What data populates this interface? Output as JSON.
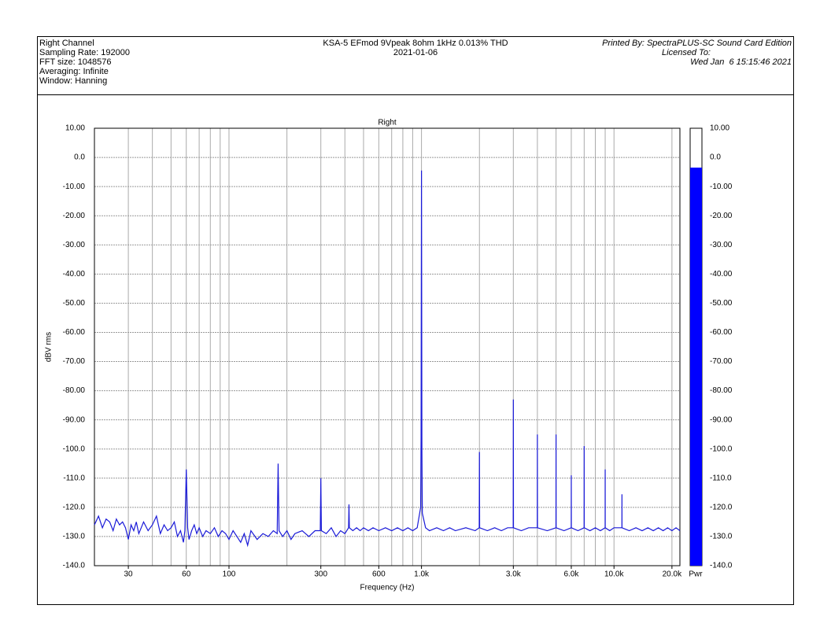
{
  "header": {
    "left": [
      "Right Channel",
      "Sampling Rate: 192000",
      "FFT size: 1048576",
      "Averaging: Infinite",
      "Window: Hanning"
    ],
    "center": [
      "KSA-5 EFmod 9Vpeak 8ohm 1kHz 0.013% THD",
      "2021-01-06"
    ],
    "right": [
      "Printed By: SpectraPLUS-SC Sound Card Edition",
      "Licensed To:",
      "Wed Jan  6 15:15:46 2021"
    ]
  },
  "chart_data": {
    "type": "line",
    "title": "Right",
    "x_label": "Frequency (Hz)",
    "y_label": "dBV rms",
    "log_x": true,
    "grid": true,
    "xlim": [
      20,
      22000
    ],
    "ylim": [
      -140,
      10
    ],
    "xticks": [
      30,
      60,
      100,
      300,
      600,
      {
        "value": 1000,
        "label": "1.0k"
      },
      {
        "value": 3000,
        "label": "3.0k"
      },
      {
        "value": 6000,
        "label": "6.0k"
      },
      {
        "value": 10000,
        "label": "10.0k"
      },
      {
        "value": 20000,
        "label": "20.0k"
      }
    ],
    "yticks": [
      {
        "value": 10,
        "label": "10.00"
      },
      {
        "value": 0,
        "label": "0.0"
      },
      {
        "value": -10,
        "label": "-10.00"
      },
      {
        "value": -20,
        "label": "-20.00"
      },
      {
        "value": -30,
        "label": "-30.00"
      },
      {
        "value": -40,
        "label": "-40.00"
      },
      {
        "value": -50,
        "label": "-50.00"
      },
      {
        "value": -60,
        "label": "-60.00"
      },
      {
        "value": -70,
        "label": "-70.00"
      },
      {
        "value": -80,
        "label": "-80.00"
      },
      {
        "value": -90,
        "label": "-90.00"
      },
      {
        "value": -100,
        "label": "-100.0"
      },
      {
        "value": -110,
        "label": "-110.0"
      },
      {
        "value": -120,
        "label": "-120.0"
      },
      {
        "value": -130,
        "label": "-130.0"
      },
      {
        "value": -140,
        "label": "-140.0"
      }
    ],
    "x": [
      20,
      21,
      22,
      23,
      24,
      25,
      26,
      27,
      28,
      29,
      30,
      31,
      32,
      33,
      34,
      35,
      36,
      38,
      40,
      42,
      44,
      46,
      48,
      50,
      52,
      54,
      56,
      58,
      59,
      60,
      61,
      62,
      64,
      66,
      68,
      70,
      73,
      76,
      80,
      84,
      88,
      92,
      96,
      100,
      105,
      110,
      115,
      120,
      125,
      130,
      140,
      150,
      160,
      170,
      178,
      180,
      182,
      190,
      200,
      210,
      220,
      240,
      260,
      280,
      298,
      300,
      302,
      320,
      340,
      360,
      380,
      400,
      418,
      420,
      422,
      440,
      460,
      480,
      500,
      530,
      560,
      600,
      650,
      700,
      750,
      800,
      850,
      900,
      950,
      990,
      995,
      1000,
      1005,
      1010,
      1050,
      1100,
      1200,
      1300,
      1400,
      1500,
      1700,
      1900,
      1995,
      2000,
      2005,
      2200,
      2400,
      2600,
      2800,
      2995,
      3000,
      3005,
      3300,
      3600,
      3995,
      4000,
      4005,
      4500,
      4995,
      5000,
      5005,
      5500,
      5995,
      6000,
      6005,
      6500,
      6995,
      7000,
      7005,
      7500,
      8000,
      8500,
      8995,
      9000,
      9005,
      9500,
      10000,
      10995,
      11000,
      11005,
      12000,
      13000,
      14000,
      15000,
      16000,
      17000,
      18000,
      19000,
      20000,
      21000,
      22000
    ],
    "series": [
      {
        "color": "#1a1ad8",
        "values": [
          -126,
          -123,
          -127,
          -124,
          -125,
          -128,
          -124,
          -126,
          -125,
          -127,
          -131,
          -126,
          -128,
          -125,
          -129,
          -127,
          -125,
          -128,
          -126,
          -123,
          -129,
          -126,
          -128,
          -127,
          -125,
          -130,
          -128,
          -132,
          -128,
          -107,
          -127,
          -131,
          -128,
          -126,
          -129,
          -127,
          -130,
          -128,
          -129,
          -127,
          -130,
          -128,
          -129,
          -131,
          -128,
          -130,
          -132,
          -129,
          -133,
          -128,
          -131,
          -129,
          -130,
          -128,
          -129,
          -105,
          -128,
          -130,
          -128,
          -131,
          -129,
          -128,
          -130,
          -128,
          -128,
          -110,
          -128,
          -129,
          -127,
          -130,
          -128,
          -129,
          -127,
          -119,
          -127,
          -128,
          -127,
          -128,
          -127,
          -128,
          -127,
          -128,
          -127,
          -128,
          -127,
          -128,
          -127,
          -128,
          -127,
          -120,
          -96,
          -4.5,
          -100,
          -122,
          -127,
          -128,
          -127,
          -128,
          -127,
          -128,
          -127,
          -128,
          -127,
          -101,
          -127,
          -128,
          -127,
          -128,
          -127,
          -127,
          -83,
          -127,
          -128,
          -127,
          -127,
          -95,
          -127,
          -128,
          -127,
          -95,
          -127,
          -128,
          -127,
          -109,
          -127,
          -128,
          -127,
          -99,
          -127,
          -128,
          -127,
          -128,
          -127,
          -107,
          -127,
          -128,
          -127,
          -127,
          -115.5,
          -127,
          -128,
          -127,
          -128,
          -127,
          -128,
          -127,
          -128,
          -127,
          -128,
          -127,
          -128
        ]
      }
    ],
    "meter_label": "Pwr",
    "meter_value": -3.5,
    "meter_color": "#0000ff"
  }
}
